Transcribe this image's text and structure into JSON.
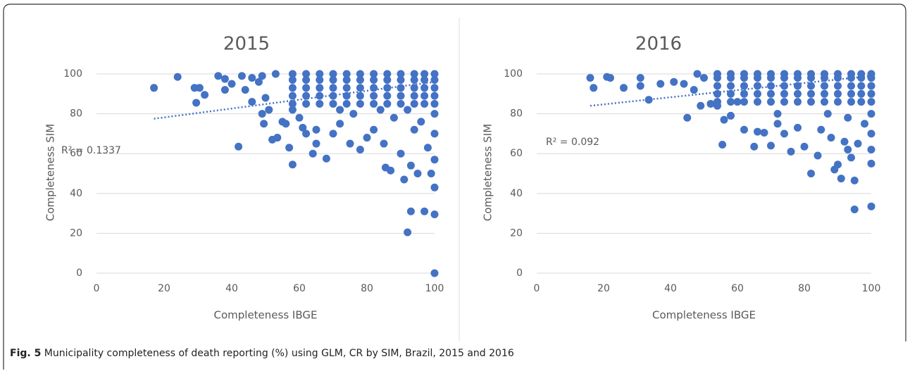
{
  "chart_data": [
    {
      "type": "scatter",
      "title": "2015",
      "x_label": "Completeness IBGE",
      "y_label": "Completeness SIM",
      "annotation": "R² = 0.1337",
      "color": "#4472c4",
      "grid": true,
      "xlim": [
        0,
        100
      ],
      "xticks": [
        0,
        20,
        40,
        60,
        80,
        100
      ],
      "ylim": [
        0,
        100
      ],
      "yticks": [
        0,
        20,
        40,
        60,
        80,
        100
      ],
      "trendline": {
        "x": [
          17,
          100
        ],
        "values": [
          77.5,
          96
        ]
      },
      "x": [
        58,
        62,
        66,
        70,
        74,
        78,
        82,
        86,
        90,
        94,
        97,
        100,
        58,
        62,
        66,
        70,
        74,
        78,
        82,
        86,
        90,
        94,
        97,
        100,
        58,
        62,
        66,
        70,
        74,
        78,
        82,
        86,
        90,
        94,
        97,
        100,
        58,
        62,
        66,
        70,
        74,
        78,
        82,
        86,
        90,
        94,
        97,
        100,
        58,
        62,
        66,
        70,
        74,
        78,
        82,
        86,
        90,
        94,
        97,
        100,
        17,
        24,
        29,
        30.5,
        29.5,
        32,
        36,
        38,
        38,
        40,
        42,
        43,
        44,
        46,
        46,
        48,
        49,
        49,
        49.5,
        50,
        51,
        52,
        53.5,
        53,
        55,
        56,
        57,
        58,
        58,
        60,
        61,
        62,
        64,
        65,
        65,
        68,
        70,
        72,
        75,
        76,
        78,
        80,
        82,
        85,
        85.5,
        87,
        88,
        90,
        91,
        92,
        93,
        93,
        94,
        95,
        97,
        98,
        99,
        100,
        100,
        100,
        100,
        100,
        100,
        96,
        84,
        72,
        92
      ],
      "values": [
        85,
        85,
        85,
        85,
        85,
        85,
        85,
        85,
        85,
        85,
        85,
        85,
        89,
        89,
        89,
        89,
        89,
        89,
        89,
        89,
        89,
        89,
        89,
        89,
        93,
        93,
        93,
        93,
        93,
        93,
        93,
        93,
        93,
        93,
        93,
        93,
        97,
        97,
        97,
        97,
        97,
        97,
        97,
        97,
        97,
        97,
        97,
        97,
        100,
        100,
        100,
        100,
        100,
        100,
        100,
        100,
        100,
        100,
        100,
        100,
        93,
        98.5,
        93,
        93,
        85.5,
        89.5,
        99,
        97.5,
        92,
        95,
        63.5,
        99,
        92,
        98,
        86,
        96,
        99,
        80,
        75,
        88,
        82,
        67,
        68,
        100,
        76,
        75,
        63,
        82,
        54.5,
        78,
        73,
        70,
        60,
        65,
        72,
        57.5,
        70,
        75,
        65,
        80,
        62,
        68,
        72,
        65,
        53,
        51.5,
        78,
        60,
        47,
        20.5,
        31,
        54,
        72,
        50,
        31,
        63,
        50,
        57,
        43,
        29.5,
        0,
        70,
        80,
        76,
        82,
        82,
        82
      ]
    },
    {
      "type": "scatter",
      "title": "2016",
      "x_label": "Completeness IBGE",
      "y_label": "Completeness SIM",
      "annotation": "R² = 0.092",
      "color": "#4472c4",
      "grid": true,
      "xlim": [
        0,
        100
      ],
      "xticks": [
        0,
        20,
        40,
        60,
        80,
        100
      ],
      "ylim": [
        0,
        100
      ],
      "yticks": [
        0,
        20,
        40,
        60,
        80,
        100
      ],
      "trendline": {
        "x": [
          16,
          100
        ],
        "values": [
          84,
          99
        ]
      },
      "x": [
        54,
        58,
        62,
        66,
        70,
        74,
        78,
        82,
        86,
        90,
        94,
        97,
        100,
        54,
        58,
        62,
        66,
        70,
        74,
        78,
        82,
        86,
        90,
        94,
        97,
        100,
        54,
        58,
        62,
        66,
        70,
        74,
        78,
        82,
        86,
        90,
        94,
        97,
        100,
        54,
        58,
        62,
        66,
        70,
        74,
        78,
        82,
        86,
        90,
        94,
        97,
        100,
        54,
        58,
        62,
        66,
        70,
        74,
        78,
        82,
        86,
        90,
        94,
        97,
        100,
        16,
        17,
        21,
        22,
        26,
        31,
        31,
        33.5,
        37,
        41,
        44,
        45,
        47,
        48,
        49,
        50,
        52,
        54,
        55.5,
        56,
        58,
        60,
        62,
        65,
        66,
        68,
        70,
        72,
        74,
        76,
        78,
        80,
        82,
        84,
        85,
        87,
        89,
        90,
        91,
        92,
        93,
        94,
        95,
        95,
        96,
        98,
        100,
        100,
        100,
        100,
        100,
        93,
        88,
        72
      ],
      "values": [
        86,
        86,
        86,
        86,
        86,
        86,
        86,
        86,
        86,
        86,
        86,
        86,
        86,
        90,
        90,
        90,
        90,
        90,
        90,
        90,
        90,
        90,
        90,
        90,
        90,
        90,
        94,
        94,
        94,
        94,
        94,
        94,
        94,
        94,
        94,
        94,
        94,
        94,
        94,
        98,
        98,
        98,
        98,
        98,
        98,
        98,
        98,
        98,
        98,
        98,
        98,
        98,
        100,
        100,
        100,
        100,
        100,
        100,
        100,
        100,
        100,
        100,
        100,
        100,
        100,
        98,
        93,
        98.5,
        98,
        93,
        98,
        94,
        87,
        95,
        96,
        95,
        78,
        92,
        100,
        84,
        98,
        85,
        84,
        64.5,
        77,
        79,
        86,
        72,
        63.5,
        71,
        70.5,
        64,
        75,
        70,
        61,
        73,
        63.5,
        50,
        59,
        72,
        80,
        52,
        54.5,
        47.5,
        66,
        62,
        58,
        32,
        46.5,
        65,
        75,
        33.5,
        55,
        62,
        70,
        80,
        78,
        68,
        80
      ]
    }
  ],
  "figure_caption": {
    "label": "Fig. 5",
    "text": "Municipality completeness of death reporting (%) using GLM, CR by SIM, Brazil, 2015 and 2016"
  }
}
